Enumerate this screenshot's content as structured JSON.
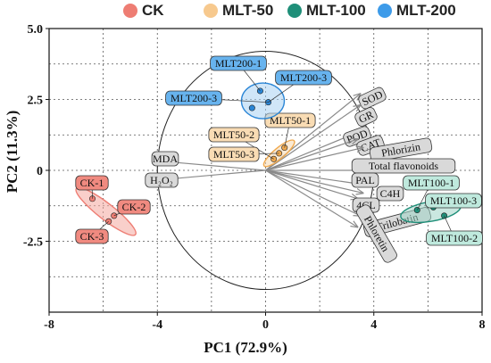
{
  "chart_data": {
    "type": "scatter",
    "xlabel": "PC1 (72.9%)",
    "ylabel": "PC2 (11.3%)",
    "xlim": [
      -8,
      8
    ],
    "ylim": [
      -5,
      5
    ],
    "x_ticks": [
      "-8",
      "-4",
      "0",
      "4",
      "8"
    ],
    "y_ticks": [
      "5.0",
      "2.5",
      "0",
      "-2.5"
    ],
    "y_tick_values": [
      5,
      2.5,
      0,
      -2.5
    ],
    "grid": true,
    "legend_position": "top",
    "legend": [
      {
        "label": "CK",
        "color": "#ee7d73"
      },
      {
        "label": "MLT-50",
        "color": "#f7c98e"
      },
      {
        "label": "MLT-100",
        "color": "#1f8f79"
      },
      {
        "label": "MLT-200",
        "color": "#3d9be9"
      }
    ],
    "groups": [
      {
        "name": "CK",
        "color": "#ee7d73",
        "fill": "#f4a79e",
        "label_fill": "#f08a80",
        "points": [
          {
            "x": -6.4,
            "y": -1.0,
            "label": "CK-1"
          },
          {
            "x": -5.8,
            "y": -1.8,
            "label": "CK-3"
          },
          {
            "x": -5.6,
            "y": -1.6,
            "label": "CK-2"
          }
        ]
      },
      {
        "name": "MLT-50",
        "color": "#f0a94e",
        "fill": "#f7d9ae",
        "label_fill": "#f9dcb4",
        "points": [
          {
            "x": 0.3,
            "y": 0.4,
            "label": "MLT50-2"
          },
          {
            "x": 0.5,
            "y": 0.6,
            "label": "MLT50-3"
          },
          {
            "x": 0.7,
            "y": 0.8,
            "label": "MLT50-1"
          }
        ]
      },
      {
        "name": "MLT-200",
        "color": "#2b86d6",
        "fill": "#a9d2f3",
        "label_fill": "#67b3ee",
        "points": [
          {
            "x": -0.2,
            "y": 2.8,
            "label": "MLT200-1"
          },
          {
            "x": 0.1,
            "y": 2.4,
            "label": "MLT200-3"
          },
          {
            "x": -0.5,
            "y": 2.2,
            "label": "MLT200-3"
          }
        ]
      },
      {
        "name": "MLT-100",
        "color": "#1f8f79",
        "fill": "#9fd3c6",
        "label_fill": "#bfe9dd",
        "points": [
          {
            "x": 5.6,
            "y": -1.4,
            "label": "MLT100-1"
          },
          {
            "x": 6.2,
            "y": -1.3,
            "label": "MLT100-3"
          },
          {
            "x": 6.6,
            "y": -1.6,
            "label": "MLT100-2"
          }
        ]
      }
    ],
    "loadings": [
      {
        "label": "SOD",
        "x": 3.5,
        "y": 2.7
      },
      {
        "label": "GR",
        "x": 3.5,
        "y": 2.3
      },
      {
        "label": "POD",
        "x": 3.3,
        "y": 1.3
      },
      {
        "label": "CAT",
        "x": 3.4,
        "y": 1.1
      },
      {
        "label": "Phlorizin",
        "x": 3.6,
        "y": 0.8
      },
      {
        "label": "Total flavonoids",
        "x": 3.6,
        "y": 0.0
      },
      {
        "label": "PAL",
        "x": 3.6,
        "y": -0.5
      },
      {
        "label": "C4H",
        "x": 3.6,
        "y": -0.8
      },
      {
        "label": "4CL",
        "x": 3.4,
        "y": -1.0
      },
      {
        "label": "Trilobatin",
        "x": 3.5,
        "y": -1.6
      },
      {
        "label": "Phloretin",
        "x": 3.4,
        "y": -2.0
      },
      {
        "label": "MDA",
        "x": -3.6,
        "y": 0.3
      },
      {
        "label": "H₂O₂",
        "x": -3.5,
        "y": -0.3
      }
    ]
  }
}
